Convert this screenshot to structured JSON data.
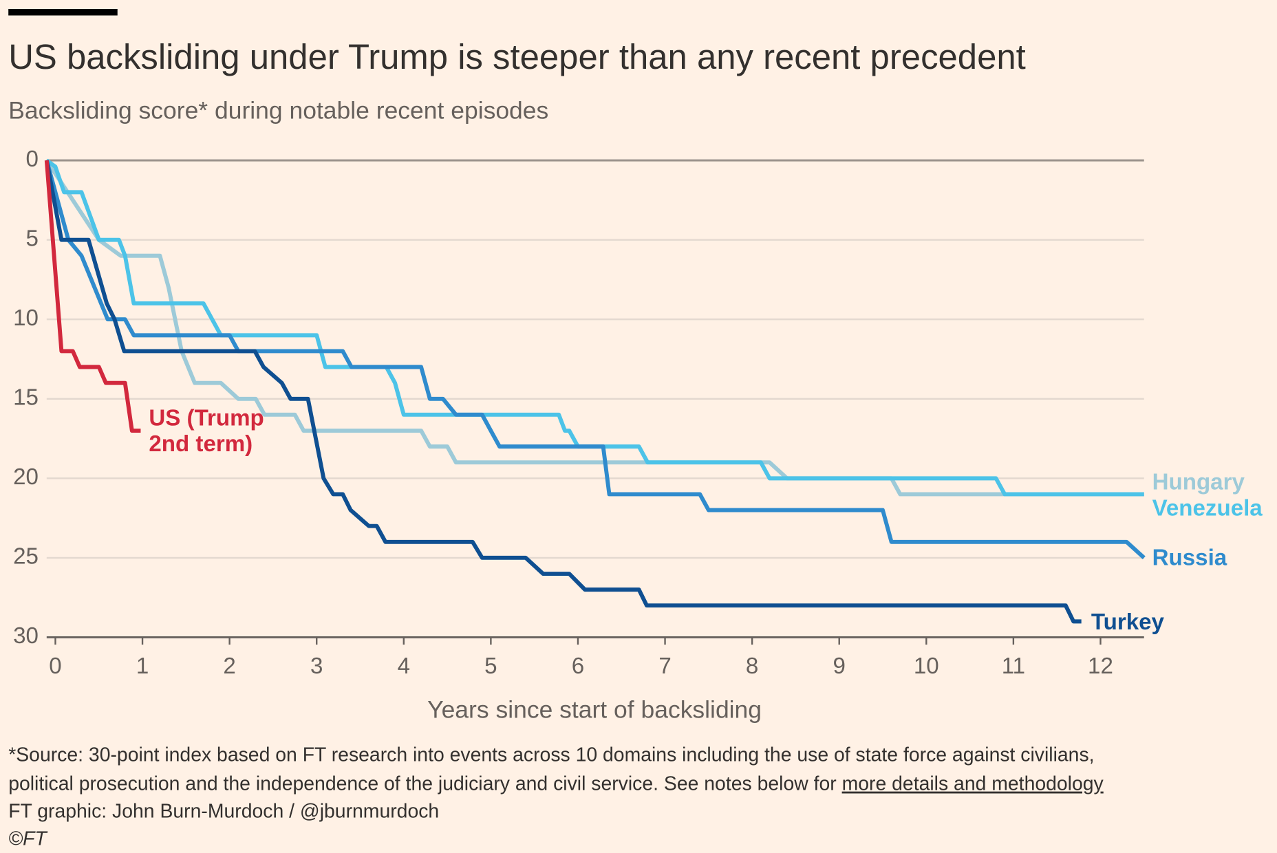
{
  "chart_data": {
    "type": "line",
    "title": "US backsliding under Trump is steeper than any recent precedent",
    "subtitle": "Backsliding score* during notable recent episodes",
    "xlabel": "Years since start of backsliding",
    "xlim": [
      -0.1,
      12.5
    ],
    "xticks": [
      0,
      1,
      2,
      3,
      4,
      5,
      6,
      7,
      8,
      9,
      10,
      11,
      12
    ],
    "ylim": [
      0,
      30
    ],
    "yticks": [
      0,
      5,
      10,
      15,
      20,
      25,
      30
    ],
    "y_inverted": true,
    "grid": true,
    "series": [
      {
        "name": "Hungary",
        "color": "#9dcad8",
        "x": [
          -0.1,
          0.5,
          0.75,
          1.2,
          1.3,
          1.45,
          1.6,
          1.9,
          2.1,
          2.3,
          2.4,
          2.75,
          2.85,
          4.2,
          4.3,
          4.5,
          4.6,
          8.2,
          8.4,
          9.6,
          9.7,
          12.5
        ],
        "values": [
          0,
          5,
          6,
          6,
          8,
          12,
          14,
          14,
          15,
          15,
          16,
          16,
          17,
          17,
          18,
          18,
          19,
          19,
          20,
          20,
          21,
          21
        ]
      },
      {
        "name": "Venezuela",
        "color": "#4cc3e8",
        "x": [
          -0.1,
          0.0,
          0.1,
          0.3,
          0.5,
          0.73,
          0.8,
          0.9,
          1.7,
          1.9,
          3.0,
          3.1,
          3.8,
          3.9,
          4.0,
          5.78,
          5.85,
          5.9,
          6.0,
          6.7,
          6.8,
          8.1,
          8.2,
          10.8,
          10.9,
          12.5
        ],
        "values": [
          0,
          0.4,
          2,
          2,
          5,
          5,
          6,
          9,
          9,
          11,
          11,
          13,
          13,
          14,
          16,
          16,
          17,
          17,
          18,
          18,
          19,
          19,
          20,
          20,
          21,
          21
        ]
      },
      {
        "name": "Russia",
        "color": "#2f8bcd",
        "x": [
          -0.1,
          0.15,
          0.3,
          0.6,
          0.8,
          0.9,
          2.0,
          2.1,
          3.3,
          3.4,
          4.2,
          4.3,
          4.45,
          4.6,
          4.9,
          5.0,
          5.1,
          6.29,
          6.36,
          7.4,
          7.5,
          9.5,
          9.6,
          12.3,
          12.5
        ],
        "values": [
          0,
          5,
          6,
          10,
          10,
          11,
          11,
          12,
          12,
          13,
          13,
          15,
          15,
          16,
          16,
          17,
          18,
          18,
          21,
          21,
          22,
          22,
          24,
          24,
          25
        ]
      },
      {
        "name": "Turkey",
        "color": "#0f4f91",
        "x": [
          -0.1,
          0.07,
          0.38,
          0.59,
          0.68,
          0.79,
          2.29,
          2.39,
          2.6,
          2.7,
          2.9,
          3.08,
          3.19,
          3.3,
          3.39,
          3.6,
          3.69,
          3.79,
          4.79,
          4.9,
          5.4,
          5.6,
          5.9,
          6.08,
          6.7,
          6.79,
          11.6,
          11.69,
          11.78
        ],
        "values": [
          0,
          5,
          5,
          9,
          10,
          12,
          12,
          13,
          14,
          15,
          15,
          20,
          21,
          21,
          22,
          23,
          23,
          24,
          24,
          25,
          25,
          26,
          26,
          27,
          27,
          28,
          28,
          29,
          29
        ]
      },
      {
        "name": "US (Trump 2nd term)",
        "color": "#d2283d",
        "x": [
          -0.1,
          0.07,
          0.2,
          0.28,
          0.5,
          0.58,
          0.8,
          0.88,
          0.98
        ],
        "values": [
          0,
          12,
          12,
          13,
          13,
          14,
          14,
          17,
          17
        ]
      }
    ],
    "notes": [
      "*Source: 30-point index based on FT research into events across 10 domains including the use of state force against civilians,",
      "political prosecution and the independence of the judiciary and civil service. See notes below for"
    ],
    "note_link": "more details and methodology",
    "credit": "FT graphic: John Burn-Murdoch / @jburnmurdoch",
    "copyright": "©FT"
  }
}
